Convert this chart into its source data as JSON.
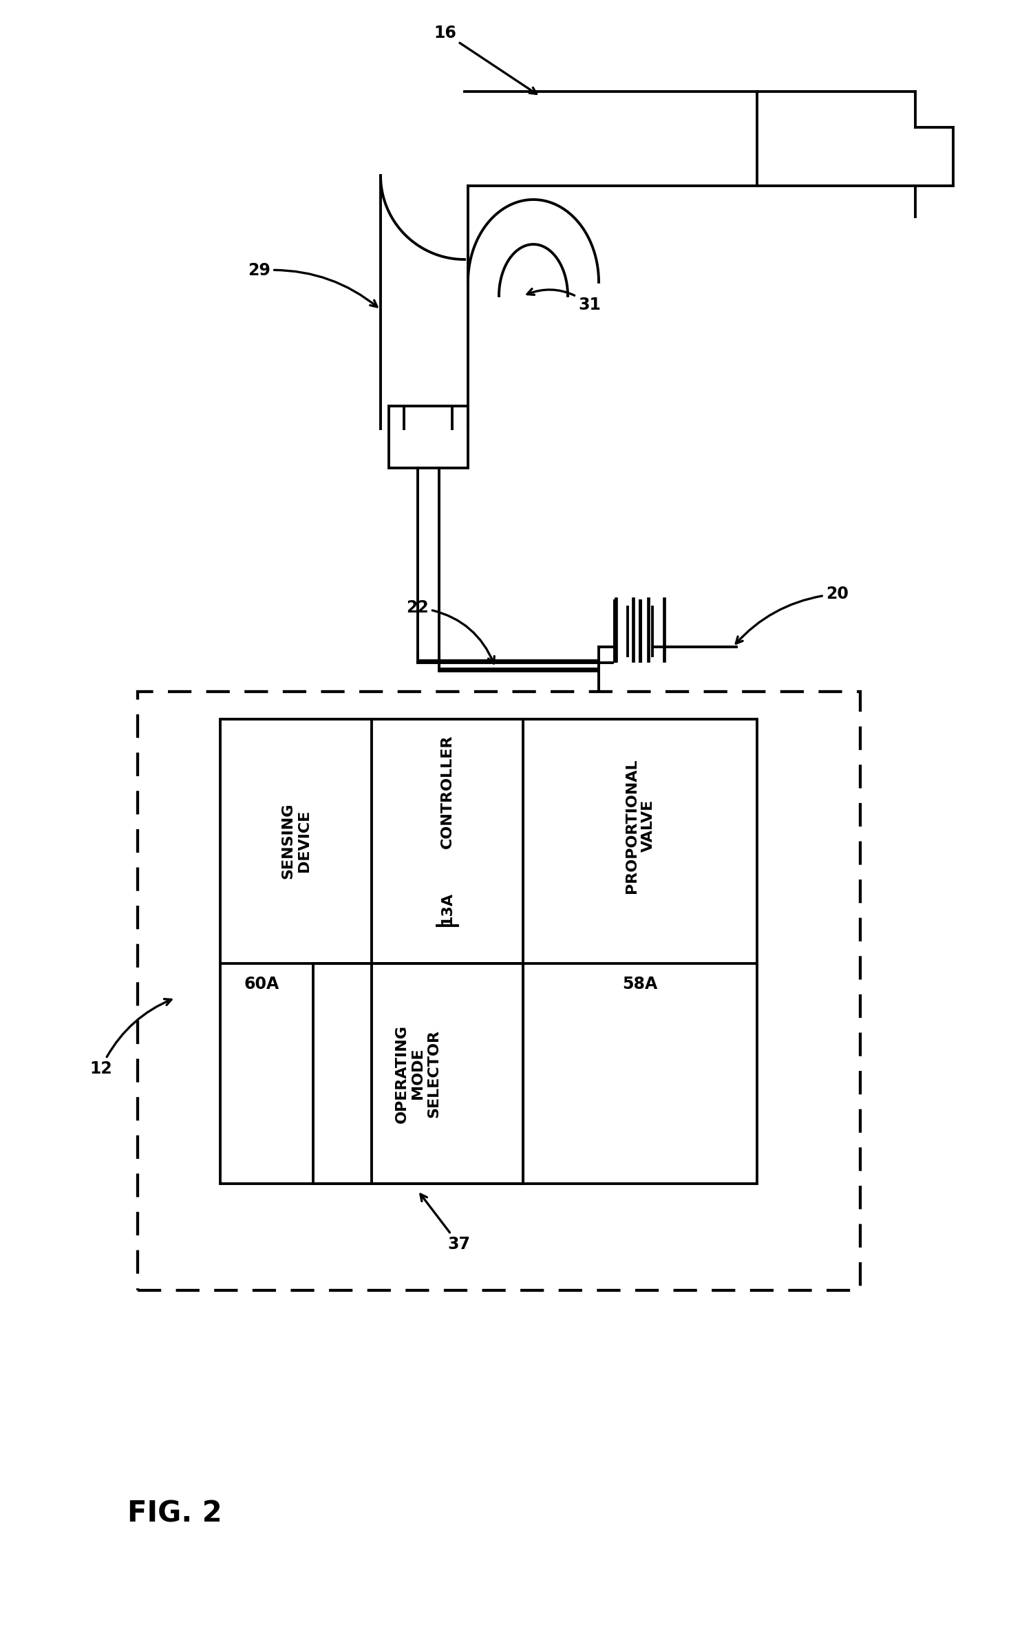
{
  "bg_color": "#ffffff",
  "line_color": "#000000",
  "fig_label": "FIG. 2",
  "lw": 2.8,
  "font_size_labels": 16,
  "font_size_numbers": 17,
  "font_size_fig": 30,
  "components": {
    "torch_num": "16",
    "cable_num": "29",
    "connector_num": "31",
    "power_num": "20",
    "gas_num": "22",
    "box_num": "12",
    "sensing": "SENSING\nDEVICE",
    "controller": "CONTROLLER",
    "controller_id": "13A",
    "prop_valve": "PROPORTIONAL\nVALVE",
    "mode_sel": "OPERATING\nMODE\nSELECTOR",
    "mode_num": "37",
    "sense_num": "60A",
    "prop_num": "58A"
  }
}
